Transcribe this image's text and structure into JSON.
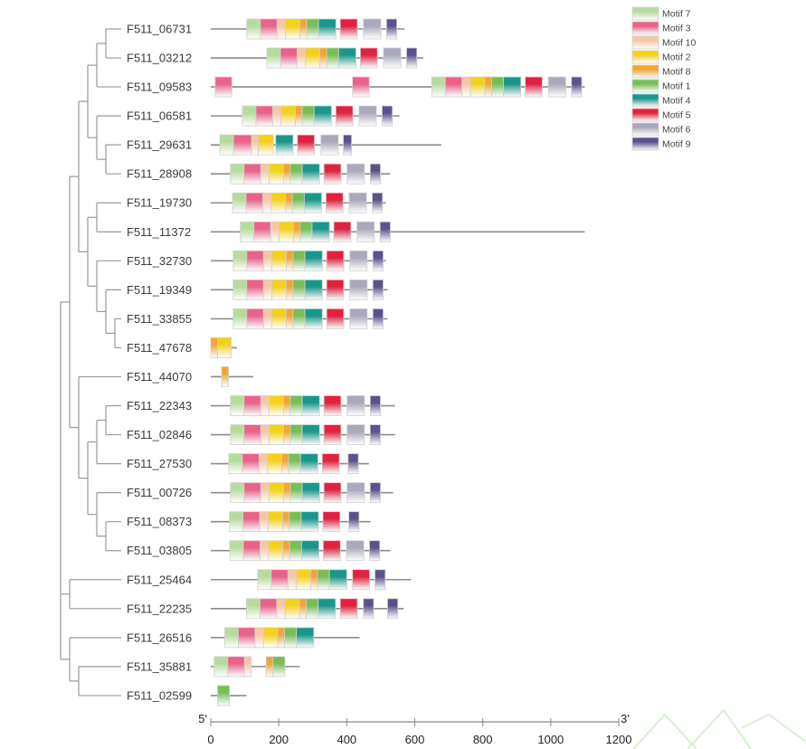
{
  "motif_colors": {
    "7": "#b7db9e",
    "3": "#e8628a",
    "10": "#f6c7a6",
    "2": "#f4d11f",
    "8": "#f0a534",
    "1": "#79bd57",
    "4": "#1b978a",
    "5": "#df2240",
    "6": "#a9a9bb",
    "9": "#5b5289"
  },
  "legend": [
    {
      "motif": "7",
      "label": "Motif 7"
    },
    {
      "motif": "3",
      "label": "Motif 3"
    },
    {
      "motif": "10",
      "label": "Motif 10"
    },
    {
      "motif": "2",
      "label": "Motif 2"
    },
    {
      "motif": "8",
      "label": "Motif 8"
    },
    {
      "motif": "1",
      "label": "Motif 1"
    },
    {
      "motif": "4",
      "label": "Motif 4"
    },
    {
      "motif": "5",
      "label": "Motif 5"
    },
    {
      "motif": "6",
      "label": "Motif 6"
    },
    {
      "motif": "9",
      "label": "Motif 9"
    }
  ],
  "axis": {
    "min": 0,
    "max": 1200,
    "ticks": [
      "0",
      "200",
      "400",
      "600",
      "800",
      "1000",
      "1200"
    ],
    "left_end": "5'",
    "right_end": "3'"
  },
  "genes": [
    {
      "name": "F511_06731",
      "length": 570,
      "motifs": [
        [
          7,
          106,
          146
        ],
        [
          3,
          146,
          195
        ],
        [
          10,
          195,
          220
        ],
        [
          2,
          220,
          262
        ],
        [
          8,
          262,
          282
        ],
        [
          1,
          282,
          317
        ],
        [
          4,
          317,
          368
        ],
        [
          5,
          381,
          431
        ],
        [
          6,
          449,
          500
        ],
        [
          9,
          517,
          547
        ]
      ]
    },
    {
      "name": "F511_03212",
      "length": 625,
      "motifs": [
        [
          7,
          165,
          205
        ],
        [
          3,
          205,
          254
        ],
        [
          10,
          254,
          279
        ],
        [
          2,
          279,
          321
        ],
        [
          8,
          321,
          341
        ],
        [
          1,
          341,
          376
        ],
        [
          4,
          376,
          427
        ],
        [
          5,
          440,
          490
        ],
        [
          6,
          508,
          559
        ],
        [
          9,
          576,
          606
        ]
      ]
    },
    {
      "name": "F511_09583",
      "length": 1100,
      "motifs": [
        [
          3,
          13,
          62
        ],
        [
          3,
          417,
          466
        ],
        [
          7,
          650,
          690
        ],
        [
          3,
          690,
          739
        ],
        [
          10,
          739,
          764
        ],
        [
          2,
          764,
          806
        ],
        [
          8,
          806,
          826
        ],
        [
          1,
          826,
          861
        ],
        [
          4,
          861,
          912
        ],
        [
          5,
          925,
          975
        ],
        [
          6,
          993,
          1044
        ],
        [
          9,
          1061,
          1091
        ]
      ]
    },
    {
      "name": "F511_06581",
      "length": 555,
      "motifs": [
        [
          7,
          93,
          133
        ],
        [
          3,
          133,
          182
        ],
        [
          10,
          182,
          207
        ],
        [
          2,
          207,
          249
        ],
        [
          8,
          249,
          269
        ],
        [
          1,
          269,
          304
        ],
        [
          4,
          304,
          355
        ],
        [
          5,
          368,
          418
        ],
        [
          6,
          436,
          487
        ],
        [
          9,
          504,
          534
        ]
      ]
    },
    {
      "name": "F511_29631",
      "length": 678,
      "motifs": [
        [
          7,
          27,
          67
        ],
        [
          3,
          67,
          120
        ],
        [
          10,
          120,
          140
        ],
        [
          2,
          140,
          184
        ],
        [
          4,
          191,
          242
        ],
        [
          5,
          255,
          305
        ],
        [
          6,
          324,
          375
        ],
        [
          9,
          390,
          414
        ]
      ]
    },
    {
      "name": "F511_28908",
      "length": 528,
      "motifs": [
        [
          7,
          58,
          98
        ],
        [
          3,
          98,
          147
        ],
        [
          10,
          147,
          172
        ],
        [
          2,
          172,
          214
        ],
        [
          8,
          214,
          234
        ],
        [
          1,
          234,
          269
        ],
        [
          4,
          269,
          320
        ],
        [
          5,
          333,
          383
        ],
        [
          6,
          401,
          452
        ],
        [
          9,
          469,
          499
        ]
      ]
    },
    {
      "name": "F511_19730",
      "length": 515,
      "motifs": [
        [
          7,
          64,
          104
        ],
        [
          3,
          104,
          153
        ],
        [
          10,
          153,
          178
        ],
        [
          2,
          178,
          220
        ],
        [
          8,
          220,
          240
        ],
        [
          1,
          240,
          275
        ],
        [
          4,
          275,
          326
        ],
        [
          5,
          339,
          389
        ],
        [
          6,
          407,
          458
        ],
        [
          9,
          475,
          505
        ]
      ]
    },
    {
      "name": "F511_11372",
      "length": 1100,
      "motifs": [
        [
          7,
          87,
          127
        ],
        [
          3,
          127,
          176
        ],
        [
          10,
          176,
          201
        ],
        [
          2,
          201,
          243
        ],
        [
          8,
          243,
          263
        ],
        [
          1,
          263,
          298
        ],
        [
          4,
          298,
          349
        ],
        [
          5,
          362,
          412
        ],
        [
          6,
          430,
          481
        ],
        [
          9,
          498,
          528
        ]
      ]
    },
    {
      "name": "F511_32730",
      "length": 515,
      "motifs": [
        [
          7,
          66,
          106
        ],
        [
          3,
          106,
          155
        ],
        [
          10,
          155,
          180
        ],
        [
          2,
          180,
          222
        ],
        [
          8,
          222,
          242
        ],
        [
          1,
          242,
          277
        ],
        [
          4,
          277,
          328
        ],
        [
          5,
          341,
          391
        ],
        [
          6,
          409,
          460
        ],
        [
          9,
          477,
          507
        ]
      ]
    },
    {
      "name": "F511_19349",
      "length": 520,
      "motifs": [
        [
          7,
          66,
          106
        ],
        [
          3,
          106,
          155
        ],
        [
          10,
          155,
          180
        ],
        [
          2,
          180,
          222
        ],
        [
          8,
          222,
          242
        ],
        [
          1,
          242,
          277
        ],
        [
          4,
          277,
          328
        ],
        [
          5,
          341,
          391
        ],
        [
          6,
          409,
          460
        ],
        [
          9,
          477,
          507
        ]
      ]
    },
    {
      "name": "F511_33855",
      "length": 520,
      "motifs": [
        [
          7,
          66,
          106
        ],
        [
          3,
          106,
          155
        ],
        [
          10,
          155,
          180
        ],
        [
          2,
          180,
          222
        ],
        [
          8,
          222,
          242
        ],
        [
          1,
          242,
          277
        ],
        [
          4,
          277,
          328
        ],
        [
          5,
          341,
          391
        ],
        [
          6,
          409,
          460
        ],
        [
          9,
          477,
          507
        ]
      ]
    },
    {
      "name": "F511_47678",
      "length": 77,
      "motifs": [
        [
          8,
          0,
          20
        ],
        [
          2,
          20,
          60
        ]
      ]
    },
    {
      "name": "F511_44070",
      "length": 125,
      "motifs": [
        [
          8,
          32,
          52
        ]
      ]
    },
    {
      "name": "F511_22343",
      "length": 542,
      "motifs": [
        [
          7,
          58,
          98
        ],
        [
          3,
          98,
          147
        ],
        [
          10,
          147,
          172
        ],
        [
          2,
          172,
          214
        ],
        [
          8,
          214,
          234
        ],
        [
          1,
          234,
          269
        ],
        [
          4,
          269,
          320
        ],
        [
          5,
          333,
          383
        ],
        [
          6,
          401,
          452
        ],
        [
          9,
          469,
          499
        ]
      ]
    },
    {
      "name": "F511_02846",
      "length": 542,
      "motifs": [
        [
          7,
          58,
          98
        ],
        [
          3,
          98,
          147
        ],
        [
          10,
          147,
          172
        ],
        [
          2,
          172,
          214
        ],
        [
          8,
          214,
          234
        ],
        [
          1,
          234,
          269
        ],
        [
          4,
          269,
          320
        ],
        [
          5,
          333,
          383
        ],
        [
          6,
          401,
          452
        ],
        [
          9,
          469,
          499
        ]
      ]
    },
    {
      "name": "F511_27530",
      "length": 465,
      "motifs": [
        [
          7,
          53,
          93
        ],
        [
          3,
          93,
          142
        ],
        [
          10,
          142,
          167
        ],
        [
          2,
          167,
          209
        ],
        [
          8,
          209,
          229
        ],
        [
          1,
          229,
          264
        ],
        [
          4,
          264,
          315
        ],
        [
          5,
          328,
          378
        ],
        [
          9,
          404,
          434
        ]
      ]
    },
    {
      "name": "F511_00726",
      "length": 536,
      "motifs": [
        [
          7,
          58,
          98
        ],
        [
          3,
          98,
          147
        ],
        [
          10,
          147,
          172
        ],
        [
          2,
          172,
          214
        ],
        [
          8,
          214,
          234
        ],
        [
          1,
          234,
          269
        ],
        [
          4,
          269,
          320
        ],
        [
          5,
          333,
          383
        ],
        [
          6,
          401,
          452
        ],
        [
          9,
          469,
          499
        ]
      ]
    },
    {
      "name": "F511_08373",
      "length": 470,
      "motifs": [
        [
          7,
          55,
          95
        ],
        [
          3,
          95,
          144
        ],
        [
          10,
          144,
          169
        ],
        [
          2,
          169,
          211
        ],
        [
          8,
          211,
          231
        ],
        [
          1,
          231,
          266
        ],
        [
          4,
          266,
          317
        ],
        [
          5,
          330,
          380
        ],
        [
          9,
          406,
          436
        ]
      ]
    },
    {
      "name": "F511_03805",
      "length": 528,
      "motifs": [
        [
          7,
          56,
          96
        ],
        [
          3,
          96,
          145
        ],
        [
          10,
          145,
          170
        ],
        [
          2,
          170,
          212
        ],
        [
          8,
          212,
          232
        ],
        [
          1,
          232,
          267
        ],
        [
          4,
          267,
          318
        ],
        [
          5,
          331,
          381
        ],
        [
          6,
          399,
          450
        ],
        [
          9,
          467,
          497
        ]
      ]
    },
    {
      "name": "F511_25464",
      "length": 589,
      "motifs": [
        [
          7,
          138,
          178
        ],
        [
          3,
          178,
          227
        ],
        [
          10,
          227,
          252
        ],
        [
          2,
          252,
          294
        ],
        [
          8,
          294,
          314
        ],
        [
          1,
          314,
          349
        ],
        [
          4,
          349,
          400
        ],
        [
          5,
          417,
          467
        ],
        [
          9,
          483,
          513
        ]
      ]
    },
    {
      "name": "F511_22235",
      "length": 567,
      "motifs": [
        [
          7,
          105,
          145
        ],
        [
          3,
          145,
          194
        ],
        [
          10,
          194,
          219
        ],
        [
          2,
          219,
          261
        ],
        [
          8,
          261,
          281
        ],
        [
          1,
          281,
          316
        ],
        [
          4,
          316,
          367
        ],
        [
          5,
          381,
          431
        ],
        [
          9,
          449,
          479
        ],
        [
          9,
          520,
          550
        ]
      ]
    },
    {
      "name": "F511_26516",
      "length": 438,
      "motifs": [
        [
          7,
          41,
          81
        ],
        [
          3,
          81,
          130
        ],
        [
          10,
          130,
          155
        ],
        [
          2,
          155,
          197
        ],
        [
          8,
          197,
          217
        ],
        [
          1,
          217,
          252
        ],
        [
          4,
          252,
          303
        ]
      ]
    },
    {
      "name": "F511_35881",
      "length": 262,
      "motifs": [
        [
          7,
          10,
          50
        ],
        [
          3,
          50,
          99
        ],
        [
          10,
          99,
          119
        ],
        [
          8,
          163,
          183
        ],
        [
          1,
          183,
          218
        ]
      ]
    },
    {
      "name": "F511_02599",
      "length": 105,
      "motifs": [
        [
          1,
          20,
          55
        ]
      ]
    }
  ]
}
